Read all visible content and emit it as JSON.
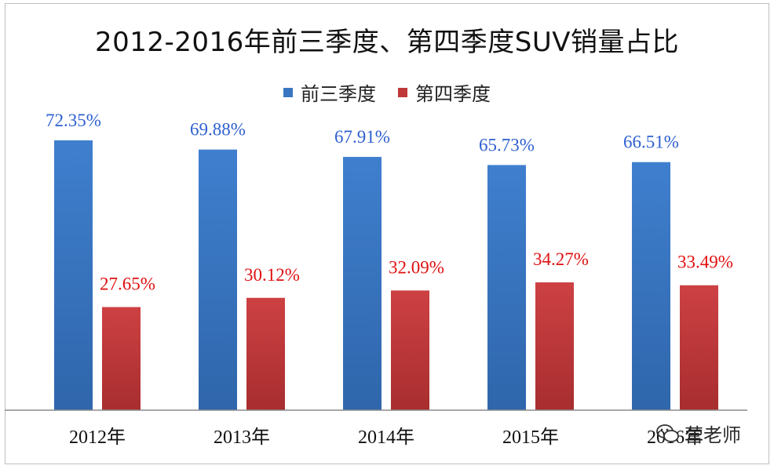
{
  "chart_data": {
    "type": "bar",
    "title": "2012-2016年前三季度、第四季度SUV销量占比",
    "categories": [
      "2012年",
      "2013年",
      "2014年",
      "2015年",
      "2016年"
    ],
    "series": [
      {
        "name": "前三季度",
        "values": [
          72.35,
          69.88,
          67.91,
          65.73,
          66.51
        ],
        "labels": [
          "72.35%",
          "69.88%",
          "67.91%",
          "65.73%",
          "66.51%"
        ],
        "color": "#3a77c2",
        "label_color": "#2e5fd0"
      },
      {
        "name": "第四季度",
        "values": [
          27.65,
          30.12,
          32.09,
          34.27,
          33.49
        ],
        "labels": [
          "27.65%",
          "30.12%",
          "32.09%",
          "34.27%",
          "33.49%"
        ],
        "color": "#c0383a",
        "label_color": "#e01010"
      }
    ],
    "ylim": [
      0,
      90
    ],
    "grid": false,
    "legend_position": "top-center"
  },
  "watermark": {
    "text": "营老师",
    "icon": "wechat-icon"
  }
}
